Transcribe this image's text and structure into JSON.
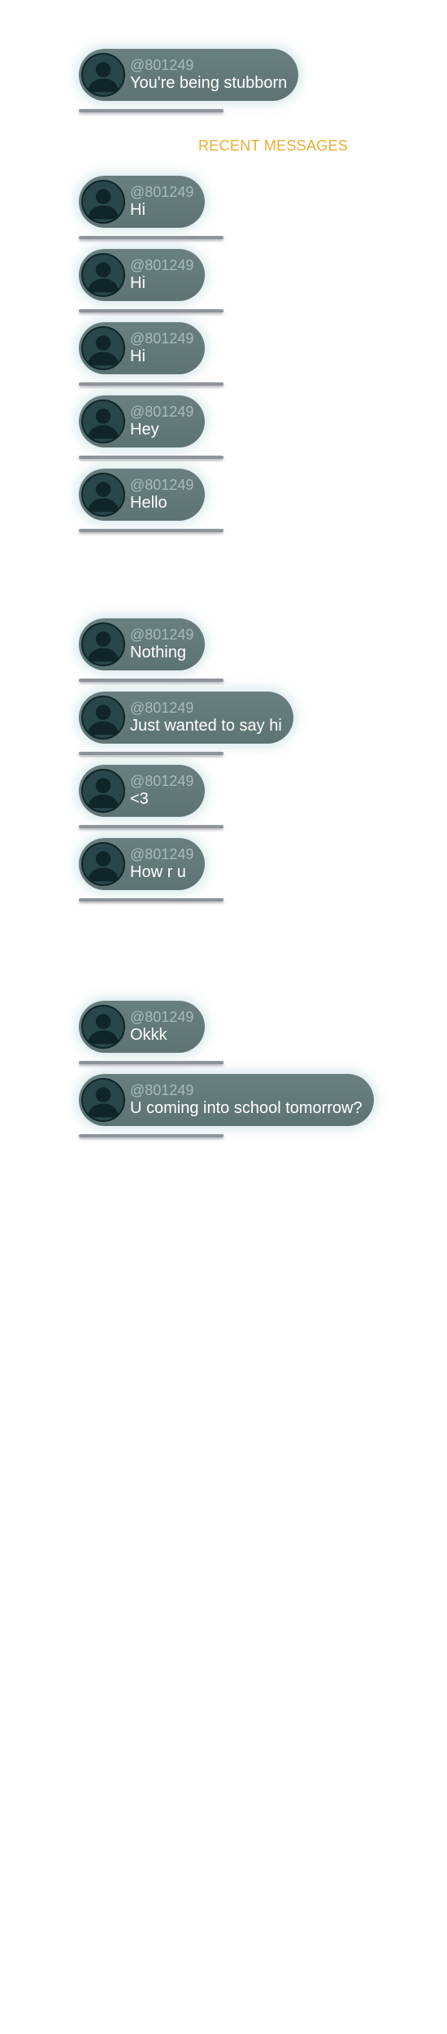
{
  "pinned": {
    "handle": "@801249",
    "text": "You're being stubborn"
  },
  "section_title": "RECENT MESSAGES",
  "messages": [
    {
      "handle": "@801249",
      "text": "Hi"
    },
    {
      "handle": "@801249",
      "text": "Hi"
    },
    {
      "handle": "@801249",
      "text": "Hi"
    },
    {
      "handle": "@801249",
      "text": "Hey"
    },
    {
      "handle": "@801249",
      "text": "Hello"
    },
    {
      "handle": "@801249",
      "text": "Nothing"
    },
    {
      "handle": "@801249",
      "text": "Just wanted to say hi"
    },
    {
      "handle": "@801249",
      "text": "<3"
    },
    {
      "handle": "@801249",
      "text": "How r u"
    },
    {
      "handle": "@801249",
      "text": "Okkk"
    },
    {
      "handle": "@801249",
      "text": "U coming into school tomorrow?"
    }
  ],
  "colors": {
    "bubble": "#627879",
    "avatar": "#29474a",
    "handle": "#a8b9bb",
    "accent": "#e8ae35",
    "underline": "#8f9499"
  },
  "icons": {
    "avatar": "user-silhouette-icon"
  }
}
